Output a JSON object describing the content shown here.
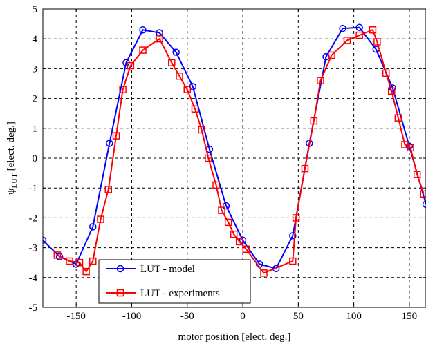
{
  "chart_data": {
    "type": "line",
    "xlabel": "motor position [elect. deg.]",
    "ylabel_main": "ψ",
    "ylabel_sub": "LUT",
    "ylabel_rest": " [elect. deg.]",
    "xlim": [
      -180,
      165
    ],
    "ylim": [
      -5,
      5
    ],
    "xticks": [
      -150,
      -100,
      -50,
      0,
      50,
      100,
      150
    ],
    "xtick_labels": [
      "-150",
      "-100",
      "-50",
      "0",
      "50",
      "100",
      "150"
    ],
    "yticks": [
      -5,
      -4,
      -3,
      -2,
      -1,
      0,
      1,
      2,
      3,
      4,
      5
    ],
    "ytick_labels": [
      "-5",
      "-4",
      "-3",
      "-2",
      "-1",
      "0",
      "1",
      "2",
      "3",
      "4",
      "5"
    ],
    "grid": true,
    "legend_position": "bottom-left",
    "series": [
      {
        "name": "LUT - model",
        "color": "#0000ff",
        "marker": "circle",
        "x": [
          -180,
          -165,
          -150,
          -135,
          -120,
          -105,
          -90,
          -75,
          -60,
          -45,
          -30,
          -15,
          0,
          15,
          30,
          45,
          60,
          75,
          90,
          105,
          120,
          135,
          150,
          165
        ],
        "y": [
          -2.75,
          -3.3,
          -3.55,
          -2.3,
          0.5,
          3.2,
          4.3,
          4.2,
          3.55,
          2.4,
          0.3,
          -1.6,
          -2.75,
          -3.55,
          -3.7,
          -2.6,
          0.5,
          3.4,
          4.35,
          4.38,
          3.65,
          2.35,
          0.4,
          -1.55
        ]
      },
      {
        "name": "LUT - experiments",
        "color": "#ff0000",
        "marker": "square",
        "x": [
          -167,
          -156,
          -147,
          -141,
          -135,
          -128,
          -121,
          -114,
          -108,
          -101,
          -90,
          -75,
          -64,
          -57,
          -50,
          -43,
          -37,
          -31,
          -24,
          -19,
          -13,
          -8,
          -3,
          3,
          19,
          45,
          48,
          56,
          64,
          70,
          80,
          94,
          105,
          117,
          121,
          129,
          134,
          140,
          146,
          151,
          157,
          163
        ],
        "y": [
          -3.25,
          -3.45,
          -3.5,
          -3.8,
          -3.45,
          -2.05,
          -1.05,
          0.75,
          2.3,
          3.1,
          3.62,
          4.0,
          3.2,
          2.75,
          2.3,
          1.65,
          0.95,
          0.0,
          -0.9,
          -1.75,
          -2.15,
          -2.55,
          -2.8,
          -3.05,
          -3.85,
          -3.45,
          -2.0,
          -0.35,
          1.25,
          2.6,
          3.45,
          3.95,
          4.12,
          4.3,
          3.9,
          2.85,
          2.25,
          1.35,
          0.45,
          0.35,
          -0.55,
          -1.2
        ]
      }
    ]
  }
}
